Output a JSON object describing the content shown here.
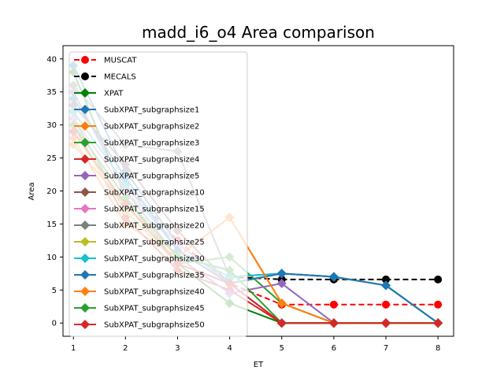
{
  "chart_data": {
    "type": "line",
    "title": "madd_i6_o4 Area comparison",
    "xlabel": "ET",
    "ylabel": "Area",
    "xlim": [
      0.8,
      8.3
    ],
    "ylim": [
      -2,
      42
    ],
    "xticks": [
      1,
      2,
      3,
      4,
      5,
      6,
      7,
      8
    ],
    "yticks": [
      0,
      5,
      10,
      15,
      20,
      25,
      30,
      35,
      40
    ],
    "grid": false,
    "legend_position": "upper-left",
    "x": [
      1,
      2,
      3,
      4,
      5,
      6,
      7,
      8
    ],
    "series": [
      {
        "name": "MUSCAT",
        "color": "#ff0000",
        "marker": "circle",
        "dash": true,
        "values": [
          null,
          21,
          12.5,
          6,
          2.8,
          2.8,
          2.8,
          2.8
        ]
      },
      {
        "name": "MECALS",
        "color": "#000000",
        "marker": "circle",
        "dash": true,
        "values": [
          null,
          null,
          null,
          7,
          6.6,
          6.6,
          6.6,
          6.6
        ]
      },
      {
        "name": "XPAT",
        "color": "#008000",
        "marker": "diamond",
        "values": [
          38,
          19,
          9,
          3,
          0,
          0,
          0,
          0
        ]
      },
      {
        "name": "SubXPAT_subgraphsize1",
        "color": "#1f77b4",
        "marker": "diamond",
        "values": [
          39,
          23,
          12,
          6,
          0,
          0,
          0,
          0
        ]
      },
      {
        "name": "SubXPAT_subgraphsize2",
        "color": "#ff7f0e",
        "marker": "diamond",
        "values": [
          28,
          15,
          10,
          16,
          3,
          0,
          0,
          0
        ]
      },
      {
        "name": "SubXPAT_subgraphsize3",
        "color": "#2ca02c",
        "marker": "diamond",
        "values": [
          31,
          17,
          9,
          10,
          3,
          0,
          0,
          0
        ]
      },
      {
        "name": "SubXPAT_subgraphsize4",
        "color": "#d62728",
        "marker": "diamond",
        "values": [
          30,
          16,
          8,
          5,
          0,
          0,
          0,
          0
        ]
      },
      {
        "name": "SubXPAT_subgraphsize5",
        "color": "#9467bd",
        "marker": "diamond",
        "values": [
          35,
          20,
          10,
          4.5,
          6,
          0,
          0,
          0
        ]
      },
      {
        "name": "SubXPAT_subgraphsize10",
        "color": "#8c564b",
        "marker": "diamond",
        "values": [
          33,
          24,
          14,
          6,
          7.5,
          7,
          5.7,
          0
        ]
      },
      {
        "name": "SubXPAT_subgraphsize15",
        "color": "#e377c2",
        "marker": "diamond",
        "values": [
          31,
          20,
          12,
          6,
          7.5,
          7,
          5.7,
          0
        ]
      },
      {
        "name": "SubXPAT_subgraphsize20",
        "color": "#7f7f7f",
        "marker": "diamond",
        "values": [
          36,
          27,
          26,
          7,
          7.5,
          7,
          5.7,
          0
        ]
      },
      {
        "name": "SubXPAT_subgraphsize25",
        "color": "#bcbd22",
        "marker": "diamond",
        "values": [
          29,
          17,
          9,
          6,
          7.5,
          7,
          5.7,
          0
        ]
      },
      {
        "name": "SubXPAT_subgraphsize30",
        "color": "#17becf",
        "marker": "diamond",
        "values": [
          32,
          21,
          11,
          7,
          7.5,
          7,
          5.7,
          0
        ]
      },
      {
        "name": "SubXPAT_subgraphsize35",
        "color": "#1f77b4",
        "marker": "diamond",
        "values": [
          34,
          22,
          11,
          6,
          7.5,
          7,
          5.7,
          0
        ]
      },
      {
        "name": "SubXPAT_subgraphsize40",
        "color": "#ff7f0e",
        "marker": "diamond",
        "values": [
          27,
          18,
          10,
          16,
          3,
          0,
          0,
          0
        ]
      },
      {
        "name": "SubXPAT_subgraphsize45",
        "color": "#2ca02c",
        "marker": "diamond",
        "values": [
          30,
          19,
          10,
          8,
          0,
          0,
          0,
          0
        ]
      },
      {
        "name": "SubXPAT_subgraphsize50",
        "color": "#d62728",
        "marker": "diamond",
        "values": [
          29,
          18,
          9,
          6,
          0,
          0,
          0,
          0
        ]
      }
    ]
  }
}
